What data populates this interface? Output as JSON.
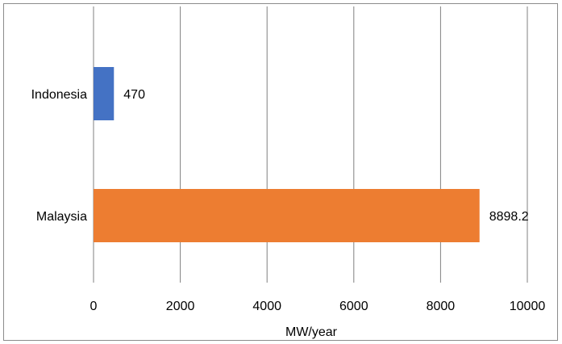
{
  "chart_data": {
    "type": "bar",
    "orientation": "horizontal",
    "categories": [
      "Indonesia",
      "Malaysia"
    ],
    "values": [
      470,
      8898.2
    ],
    "data_labels": [
      "470",
      "8898.2"
    ],
    "colors": [
      "#4472C4",
      "#ED7D31"
    ],
    "title": "",
    "xlabel": "MW/year",
    "ylabel": "",
    "xlim": [
      0,
      10000
    ],
    "xticks": [
      0,
      2000,
      4000,
      6000,
      8000,
      10000
    ],
    "xtick_labels": [
      "0",
      "2000",
      "4000",
      "6000",
      "8000",
      "10000"
    ],
    "grid": "vertical",
    "legend": "none"
  }
}
